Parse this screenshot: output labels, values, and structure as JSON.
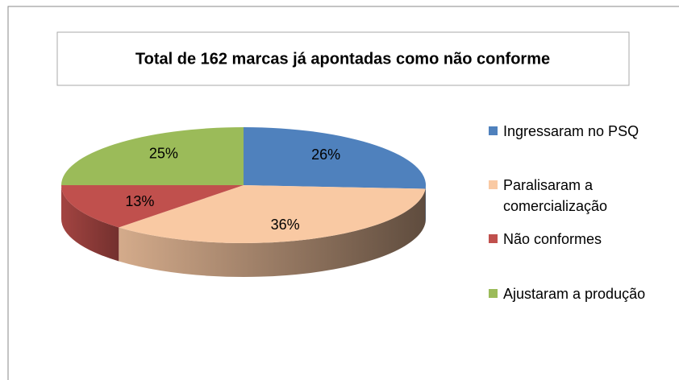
{
  "chart_data": {
    "type": "pie3d",
    "title": "Total de 162 marcas já apontadas  como não conforme",
    "categories": [
      "Ingressaram no PSQ",
      "Paralisaram a comercialização",
      "Não conformes",
      "Ajustaram a produção"
    ],
    "values": [
      26,
      36,
      13,
      25
    ],
    "value_labels": [
      "26%",
      "36%",
      "13%",
      "25%"
    ],
    "colors": [
      "#4f81bd",
      "#f9c9a3",
      "#c0504d",
      "#9bbb59"
    ],
    "legend": "right"
  }
}
